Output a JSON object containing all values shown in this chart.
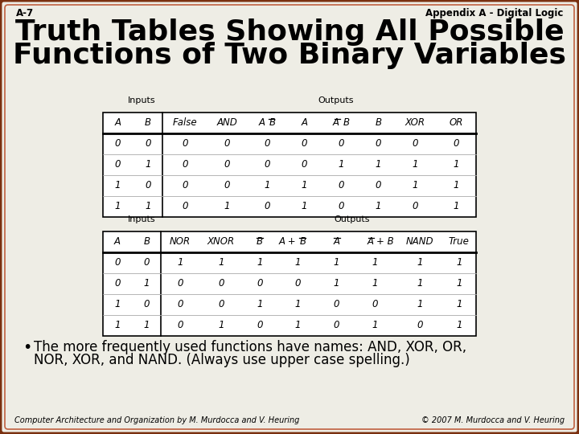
{
  "bg_color": "#eeede5",
  "border_color_outer": "#7a3010",
  "border_color_inner": "#c06040",
  "header_left": "A-7",
  "header_right": "Appendix A - Digital Logic",
  "title_line1": "Truth Tables Showing All Possible",
  "title_line2": "Functions of Two Binary Variables",
  "table1": {
    "rows": [
      [
        0,
        0,
        0,
        0,
        0,
        0,
        0,
        0,
        0,
        0
      ],
      [
        0,
        1,
        0,
        0,
        0,
        0,
        1,
        1,
        1,
        1
      ],
      [
        1,
        0,
        0,
        0,
        1,
        1,
        0,
        0,
        1,
        1
      ],
      [
        1,
        1,
        0,
        1,
        0,
        1,
        0,
        1,
        0,
        1
      ]
    ]
  },
  "table2": {
    "rows": [
      [
        0,
        0,
        1,
        1,
        1,
        1,
        1,
        1,
        1,
        1
      ],
      [
        0,
        1,
        0,
        0,
        0,
        0,
        1,
        1,
        1,
        1
      ],
      [
        1,
        0,
        0,
        0,
        1,
        1,
        0,
        0,
        1,
        1
      ],
      [
        1,
        1,
        0,
        1,
        0,
        1,
        0,
        1,
        0,
        1
      ]
    ]
  },
  "bullet_text1": "The more frequently used functions have names: AND, XOR, OR,",
  "bullet_text2": "NOR, XOR, and NAND. (Always use upper case spelling.)",
  "footer_left": "Computer Architecture and Organization by M. Murdocca and V. Heuring",
  "footer_right": "© 2007 M. Murdocca and V. Heuring"
}
